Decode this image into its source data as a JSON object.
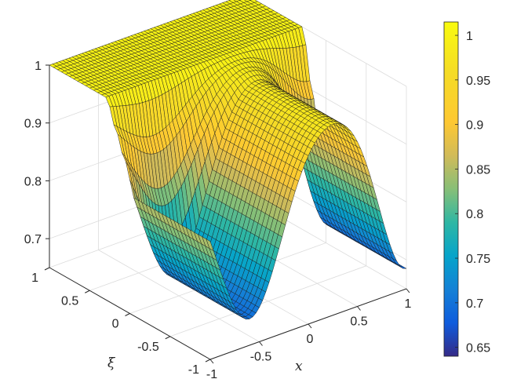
{
  "chart_data": {
    "type": "surface3d",
    "x_axis": {
      "label": "x",
      "range": [
        -1,
        1
      ],
      "ticks": [
        "-1",
        "-0.5",
        "0",
        "0.5",
        "1"
      ]
    },
    "y_axis": {
      "label": "ξ",
      "range": [
        -1,
        1
      ],
      "ticks": [
        "-1",
        "-0.5",
        "0",
        "0.5",
        "1"
      ]
    },
    "z_axis": {
      "label": "",
      "range": [
        0.65,
        1.0
      ],
      "ticks": [
        "0.7",
        "0.8",
        "0.9",
        "1"
      ]
    },
    "colorbar": {
      "range": [
        0.64,
        1.015
      ],
      "ticks": [
        "0.65",
        "0.7",
        "0.75",
        "0.8",
        "0.85",
        "0.9",
        "0.95",
        "1"
      ],
      "colormap": "parula"
    },
    "grid": true,
    "surface_description": "u(x, xi) is about 1 for positive xi; for xi below about 0.4 the surface drops with depth depending on x: minima near x = -0.6 (about 0.72) and near x = 1 (about 0.72), with a ridge near 1 around x = 0.2 to 0.4",
    "sample_values": {
      "x": [
        -1,
        -0.8,
        -0.6,
        -0.4,
        -0.2,
        0,
        0.2,
        0.4,
        0.6,
        0.8,
        1
      ],
      "xi": [
        1,
        0.5,
        0,
        -0.5,
        -1
      ],
      "z": [
        [
          1.0,
          1.0,
          1.0,
          1.0,
          1.0,
          1.0,
          1.0,
          1.0,
          1.0,
          1.0,
          1.0
        ],
        [
          1.0,
          1.0,
          1.0,
          1.0,
          1.0,
          1.0,
          1.0,
          1.0,
          0.99,
          0.97,
          0.95
        ],
        [
          0.86,
          0.8,
          0.76,
          0.78,
          0.85,
          0.95,
          0.99,
          1.0,
          0.96,
          0.88,
          0.82
        ],
        [
          0.8,
          0.75,
          0.72,
          0.74,
          0.82,
          0.93,
          0.99,
          1.0,
          0.95,
          0.84,
          0.76
        ],
        [
          0.78,
          0.74,
          0.72,
          0.73,
          0.8,
          0.92,
          0.99,
          1.0,
          0.94,
          0.82,
          0.73
        ]
      ]
    }
  }
}
